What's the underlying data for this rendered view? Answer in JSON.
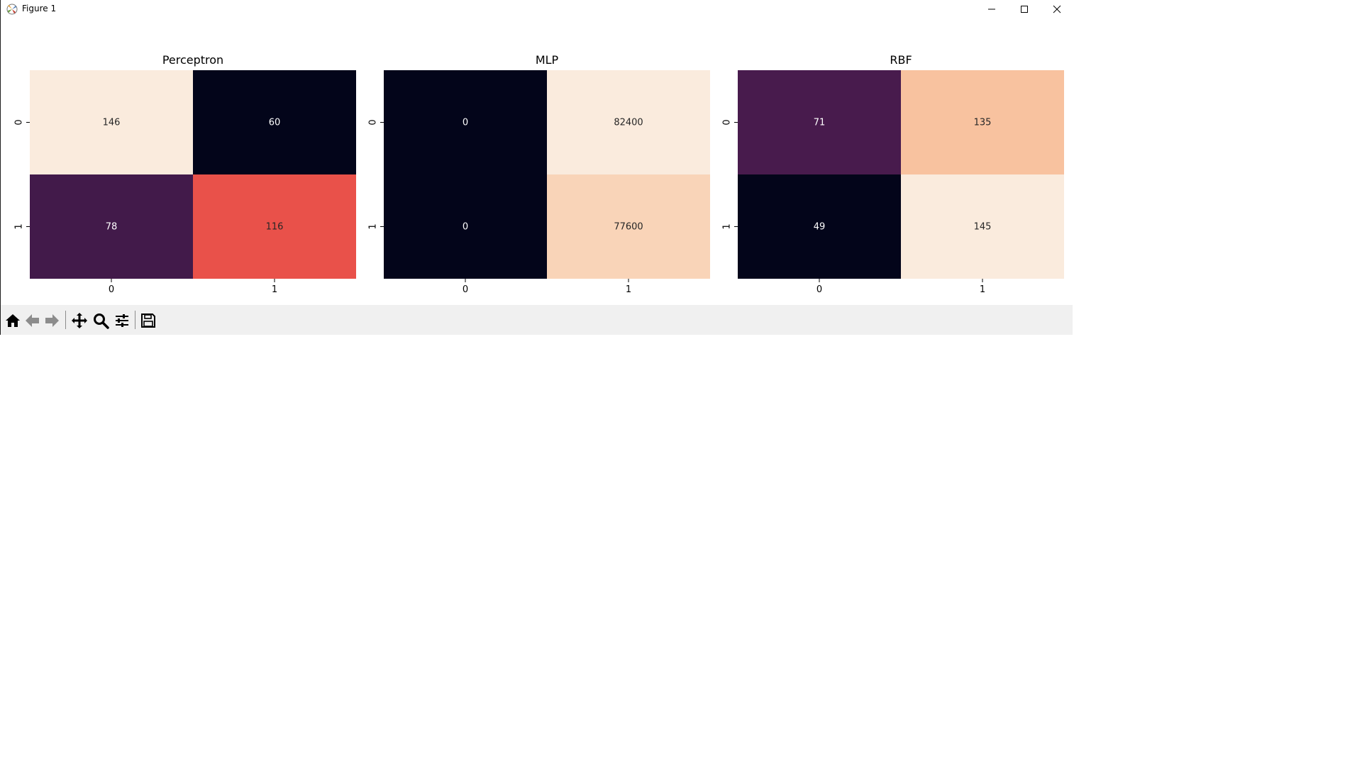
{
  "window": {
    "title": "Figure 1"
  },
  "window_controls": [
    "minimize-icon",
    "maximize-icon",
    "close-icon"
  ],
  "toolbar": {
    "buttons": [
      "home-icon",
      "back-arrow-icon",
      "forward-arrow-icon",
      "pan-icon",
      "zoom-icon",
      "configure-subplots-icon",
      "save-icon"
    ]
  },
  "colors": {
    "colormap": "rocket",
    "light_text": "#ffffff",
    "dark_text": "#262626"
  },
  "chart_data": [
    {
      "type": "heatmap",
      "title": "Perceptron",
      "x_ticks": [
        "0",
        "1"
      ],
      "y_ticks": [
        "0",
        "1"
      ],
      "matrix": [
        [
          146,
          60
        ],
        [
          78,
          116
        ]
      ],
      "colorbar": false
    },
    {
      "type": "heatmap",
      "title": "MLP",
      "x_ticks": [
        "0",
        "1"
      ],
      "y_ticks": [
        "0",
        "1"
      ],
      "matrix": [
        [
          0,
          82400
        ],
        [
          0,
          77600
        ]
      ],
      "colorbar": false
    },
    {
      "type": "heatmap",
      "title": "RBF",
      "x_ticks": [
        "0",
        "1"
      ],
      "y_ticks": [
        "0",
        "1"
      ],
      "matrix": [
        [
          71,
          135
        ],
        [
          49,
          145
        ]
      ],
      "colorbar": false
    }
  ]
}
